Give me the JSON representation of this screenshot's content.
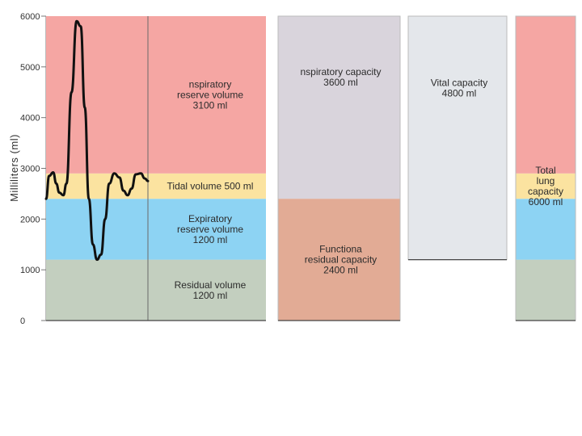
{
  "chart_data": {
    "type": "stacked-bar",
    "ylabel": "Milliliters (ml)",
    "ylim": [
      0,
      6000
    ],
    "y_ticks": [
      "6000",
      "5000",
      "4000",
      "3000",
      "2000",
      "1000",
      "0"
    ],
    "y_tick_values": [
      6000,
      5000,
      4000,
      3000,
      2000,
      1000,
      0
    ],
    "colors": {
      "inspiratory_reserve": "#f5a6a3",
      "tidal": "#fbe3a0",
      "expiratory_reserve": "#8dd3f3",
      "residual": "#c3cfbf",
      "inspiratory_capacity": "#d9d4dc",
      "functional_residual": "#e2ab95",
      "vital_capacity": "#e4e7eb",
      "trace": "#111111",
      "divider": "#6a6a6a"
    },
    "volumes": [
      {
        "name": "Residual volume",
        "from": 0,
        "to": 1200,
        "lines": [
          "Residual volume",
          "1200 ml"
        ]
      },
      {
        "name": "Expiratory reserve volume",
        "from": 1200,
        "to": 2400,
        "lines": [
          "Expiratory",
          "reserve volume",
          "1200 ml"
        ]
      },
      {
        "name": "Tidal volume",
        "from": 2400,
        "to": 2900,
        "lines": [
          "Tidal volume 500 ml"
        ]
      },
      {
        "name": "Inspiratory reserve volume",
        "from": 2900,
        "to": 6000,
        "lines": [
          "nspiratory",
          "reserve volume",
          "3100 ml"
        ]
      }
    ],
    "capacities": [
      {
        "name": "Inspiratory capacity",
        "from": 2400,
        "to": 6000,
        "lines": [
          "nspiratory capacity",
          "3600 ml"
        ]
      },
      {
        "name": "Functional residual capacity",
        "from": 0,
        "to": 2400,
        "lines": [
          "Functiona",
          "residual capacity",
          "2400 ml"
        ]
      }
    ],
    "vital_capacity": {
      "from": 1200,
      "to": 6000,
      "lines": [
        "Vital capacity",
        "4800 ml"
      ]
    },
    "total_lung_capacity": {
      "from": 0,
      "to": 6000,
      "lines": [
        "Total",
        "lung",
        "capacity",
        "6000 ml"
      ]
    },
    "spirogram": [
      [
        0.0,
        2400
      ],
      [
        0.03,
        2850
      ],
      [
        0.07,
        2920
      ],
      [
        0.1,
        2700
      ],
      [
        0.13,
        2520
      ],
      [
        0.17,
        2470
      ],
      [
        0.2,
        2700
      ],
      [
        0.25,
        4500
      ],
      [
        0.3,
        5900
      ],
      [
        0.34,
        5800
      ],
      [
        0.38,
        4200
      ],
      [
        0.42,
        2400
      ],
      [
        0.46,
        1500
      ],
      [
        0.5,
        1200
      ],
      [
        0.54,
        1300
      ],
      [
        0.58,
        2000
      ],
      [
        0.62,
        2700
      ],
      [
        0.67,
        2900
      ],
      [
        0.72,
        2820
      ],
      [
        0.76,
        2560
      ],
      [
        0.8,
        2470
      ],
      [
        0.84,
        2600
      ],
      [
        0.88,
        2880
      ],
      [
        0.93,
        2900
      ],
      [
        0.97,
        2800
      ],
      [
        1.0,
        2750
      ]
    ]
  }
}
